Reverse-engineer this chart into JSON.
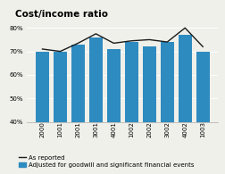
{
  "title": "Cost/income ratio",
  "categories": [
    "2000",
    "1001",
    "2001",
    "3001",
    "4001",
    "1002",
    "2002",
    "3002",
    "4002",
    "1003"
  ],
  "bar_values": [
    70,
    70,
    73,
    76,
    71,
    74,
    72,
    74,
    77,
    70
  ],
  "line_values": [
    71,
    70,
    73.5,
    77.5,
    73.5,
    74.5,
    75,
    74,
    80,
    72
  ],
  "bar_color": "#2e8bc0",
  "line_color": "#1a1a1a",
  "ylim": [
    40,
    83
  ],
  "yticks": [
    40,
    50,
    60,
    70,
    80
  ],
  "background_color": "#f0f0eb",
  "legend_line_label": "As reported",
  "legend_bar_label": "Adjusted for goodwill and significant financial events",
  "title_fontsize": 7.5,
  "tick_fontsize": 5.0,
  "legend_fontsize": 5.0
}
